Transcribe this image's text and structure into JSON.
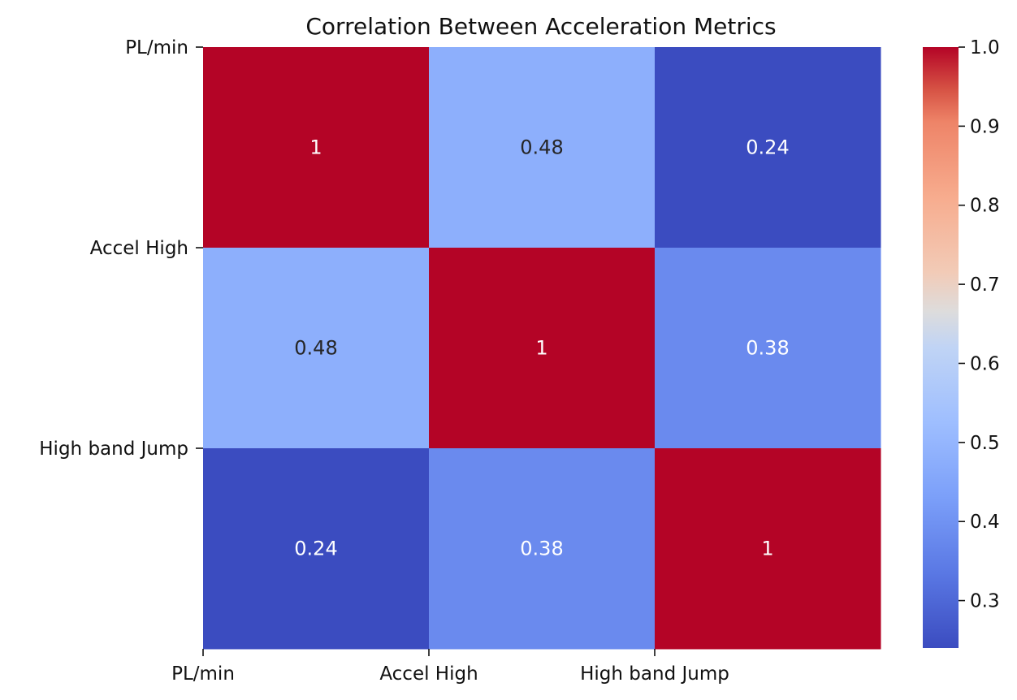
{
  "chart_data": {
    "type": "heatmap",
    "title": "Correlation Between Acceleration Metrics",
    "x_labels": [
      "PL/min",
      "Accel High",
      "High band Jump"
    ],
    "y_labels": [
      "PL/min",
      "Accel High",
      "High band Jump"
    ],
    "values": [
      [
        1,
        0.48,
        0.24
      ],
      [
        0.48,
        1,
        0.38
      ],
      [
        0.24,
        0.38,
        1
      ]
    ],
    "annotations": [
      [
        "1",
        "0.48",
        "0.24"
      ],
      [
        "0.48",
        "1",
        "0.38"
      ],
      [
        "0.24",
        "0.38",
        "1"
      ]
    ],
    "colormap": "coolwarm",
    "colorbar": {
      "range": [
        0.24,
        1.0
      ],
      "ticks": [
        0.3,
        0.4,
        0.5,
        0.6,
        0.7,
        0.8,
        0.9,
        1.0
      ],
      "tick_labels": [
        "0.3",
        "0.4",
        "0.5",
        "0.6",
        "0.7",
        "0.8",
        "0.9",
        "1.0"
      ]
    },
    "grid": false
  }
}
